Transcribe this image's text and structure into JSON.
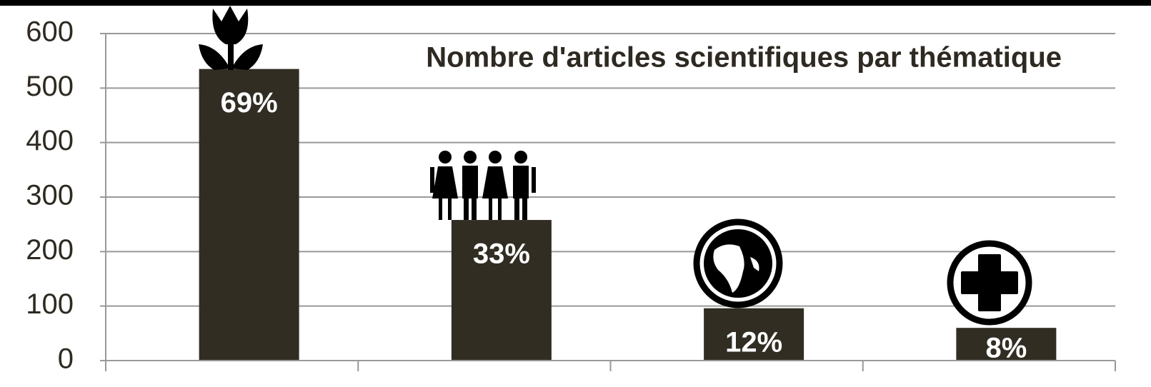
{
  "chart_data": {
    "type": "bar",
    "title": "Nombre d'articles scientifiques par thématique",
    "categories": [
      null,
      null,
      null,
      null
    ],
    "values": [
      535,
      258,
      96,
      60
    ],
    "shares": [
      {
        "value": 69,
        "label": "69%"
      },
      {
        "value": 33,
        "label": "33%"
      },
      {
        "value": 12,
        "label": "12%"
      },
      {
        "value": 8,
        "label": "8%"
      }
    ],
    "color": "#312d23",
    "ylim": [
      0,
      600
    ],
    "yticks": [
      0,
      100,
      200,
      300,
      400,
      500,
      600
    ],
    "grid": true
  }
}
